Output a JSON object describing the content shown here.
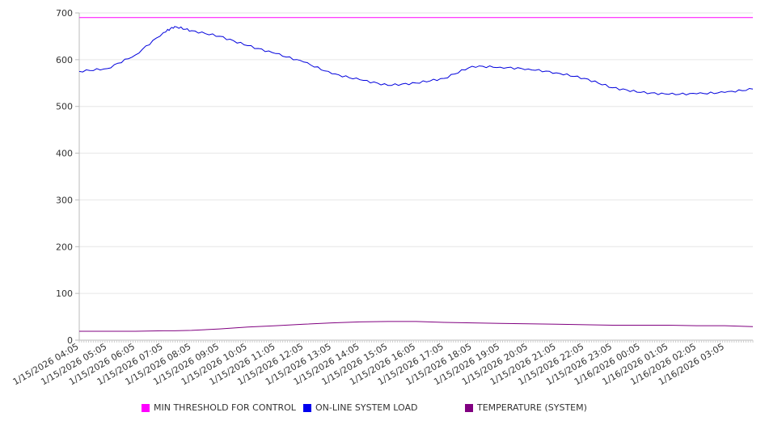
{
  "chart_data": {
    "type": "line",
    "title": "",
    "xlabel": "",
    "ylabel": "",
    "ylim": [
      0,
      700
    ],
    "yticks": [
      0,
      100,
      200,
      300,
      400,
      500,
      600,
      700
    ],
    "grid": true,
    "legend_position": "bottom",
    "x_hours_range": [
      0,
      24
    ],
    "x_tick_labels": [
      "1/15/2026 04:05",
      "1/15/2026 05:05",
      "1/15/2026 06:05",
      "1/15/2026 07:05",
      "1/15/2026 08:05",
      "1/15/2026 09:05",
      "1/15/2026 10:05",
      "1/15/2026 11:05",
      "1/15/2026 12:05",
      "1/15/2026 13:05",
      "1/15/2026 14:05",
      "1/15/2026 15:05",
      "1/15/2026 16:05",
      "1/15/2026 17:05",
      "1/15/2026 18:05",
      "1/15/2026 19:05",
      "1/15/2026 20:05",
      "1/15/2026 21:05",
      "1/15/2026 22:05",
      "1/15/2026 23:05",
      "1/16/2026 00:05",
      "1/16/2026 01:05",
      "1/16/2026 02:05",
      "1/16/2026 03:05"
    ],
    "x": [
      0,
      1,
      2,
      3,
      3.4,
      4,
      5,
      6,
      7,
      8,
      9,
      10,
      11,
      12,
      13,
      14,
      15,
      16,
      17,
      18,
      19,
      20,
      21,
      22,
      23,
      24
    ],
    "series": [
      {
        "name": "MIN THRESHOLD FOR CONTROL",
        "color": "#ff00ff",
        "values": [
          690,
          690,
          690,
          690,
          690,
          690,
          690,
          690,
          690,
          690,
          690,
          690,
          690,
          690,
          690,
          690,
          690,
          690,
          690,
          690,
          690,
          690,
          690,
          690,
          690,
          690
        ]
      },
      {
        "name": "ON-LINE SYSTEM LOAD",
        "color": "#0000dd",
        "values": [
          575,
          581,
          610,
          658,
          671,
          662,
          650,
          630,
          613,
          595,
          570,
          557,
          545,
          550,
          560,
          586,
          584,
          580,
          572,
          560,
          540,
          530,
          526,
          527,
          530,
          537
        ]
      },
      {
        "name": "TEMPERATURE (SYSTEM)",
        "color": "#800080",
        "values": [
          19,
          19,
          19,
          20,
          20,
          21,
          24,
          28,
          31,
          34,
          37,
          39,
          40,
          40,
          38,
          37,
          36,
          35,
          34,
          33,
          32,
          32,
          32,
          31,
          31,
          29
        ]
      }
    ]
  }
}
